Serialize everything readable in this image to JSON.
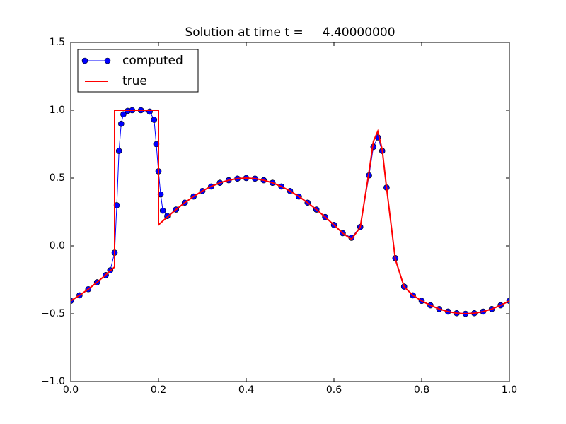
{
  "chart_data": {
    "type": "line",
    "title": "Solution at time t =     4.40000000",
    "xlim": [
      0,
      1
    ],
    "ylim": [
      -1,
      1.5
    ],
    "xticks": [
      {
        "value": 0,
        "label": "0.0"
      },
      {
        "value": 0.2,
        "label": "0.2"
      },
      {
        "value": 0.4,
        "label": "0.4"
      },
      {
        "value": 0.6,
        "label": "0.6"
      },
      {
        "value": 0.8,
        "label": "0.8"
      },
      {
        "value": 1,
        "label": "1.0"
      }
    ],
    "yticks": [
      {
        "value": -1,
        "label": "−1.0"
      },
      {
        "value": -0.5,
        "label": "−0.5"
      },
      {
        "value": 0,
        "label": "0.0"
      },
      {
        "value": 0.5,
        "label": "0.5"
      },
      {
        "value": 1,
        "label": "1.0"
      },
      {
        "value": 1.5,
        "label": "1.5"
      }
    ],
    "legend": "upper left",
    "series": [
      {
        "name": "computed",
        "color": "#0000ff",
        "marker": "circle",
        "x": [
          0,
          0.02,
          0.04,
          0.06,
          0.08,
          0.09,
          0.1,
          0.105,
          0.11,
          0.115,
          0.12,
          0.13,
          0.14,
          0.16,
          0.18,
          0.19,
          0.195,
          0.2,
          0.205,
          0.21,
          0.22,
          0.24,
          0.26,
          0.28,
          0.3,
          0.32,
          0.34,
          0.36,
          0.38,
          0.4,
          0.42,
          0.44,
          0.46,
          0.48,
          0.5,
          0.52,
          0.54,
          0.56,
          0.58,
          0.6,
          0.62,
          0.64,
          0.66,
          0.68,
          0.69,
          0.7,
          0.71,
          0.72,
          0.74,
          0.76,
          0.78,
          0.8,
          0.82,
          0.84,
          0.86,
          0.88,
          0.9,
          0.92,
          0.94,
          0.96,
          0.98,
          1
        ],
        "values": [
          -0.405,
          -0.364,
          -0.319,
          -0.268,
          -0.215,
          -0.18,
          -0.05,
          0.3,
          0.7,
          0.9,
          0.97,
          0.995,
          1,
          1,
          0.99,
          0.93,
          0.75,
          0.55,
          0.38,
          0.26,
          0.22,
          0.268,
          0.319,
          0.364,
          0.405,
          0.438,
          0.465,
          0.484,
          0.496,
          0.5,
          0.496,
          0.484,
          0.465,
          0.438,
          0.405,
          0.364,
          0.319,
          0.268,
          0.213,
          0.155,
          0.094,
          0.06,
          0.14,
          0.52,
          0.73,
          0.8,
          0.7,
          0.43,
          -0.09,
          -0.3,
          -0.364,
          -0.405,
          -0.438,
          -0.465,
          -0.484,
          -0.496,
          -0.5,
          -0.496,
          -0.484,
          -0.465,
          -0.438,
          -0.405
        ]
      },
      {
        "name": "true",
        "color": "#ff0000",
        "x": [
          0,
          0.02,
          0.04,
          0.06,
          0.08,
          0.1,
          0.1,
          0.2,
          0.2,
          0.22,
          0.24,
          0.26,
          0.28,
          0.3,
          0.32,
          0.34,
          0.36,
          0.38,
          0.4,
          0.42,
          0.44,
          0.46,
          0.48,
          0.5,
          0.52,
          0.54,
          0.56,
          0.58,
          0.6,
          0.62,
          0.64,
          0.66,
          0.68,
          0.69,
          0.7,
          0.71,
          0.72,
          0.74,
          0.76,
          0.78,
          0.8,
          0.82,
          0.84,
          0.86,
          0.88,
          0.9,
          0.92,
          0.94,
          0.96,
          0.98,
          1
        ],
        "values": [
          -0.405,
          -0.364,
          -0.319,
          -0.268,
          -0.213,
          -0.155,
          1,
          1,
          0.155,
          0.213,
          0.268,
          0.319,
          0.364,
          0.405,
          0.438,
          0.465,
          0.484,
          0.496,
          0.5,
          0.496,
          0.484,
          0.465,
          0.438,
          0.405,
          0.364,
          0.319,
          0.268,
          0.213,
          0.155,
          0.094,
          0.049,
          0.138,
          0.547,
          0.771,
          0.845,
          0.711,
          0.428,
          -0.099,
          -0.301,
          -0.364,
          -0.405,
          -0.438,
          -0.465,
          -0.484,
          -0.496,
          -0.5,
          -0.496,
          -0.484,
          -0.465,
          -0.438,
          -0.405
        ]
      }
    ]
  }
}
